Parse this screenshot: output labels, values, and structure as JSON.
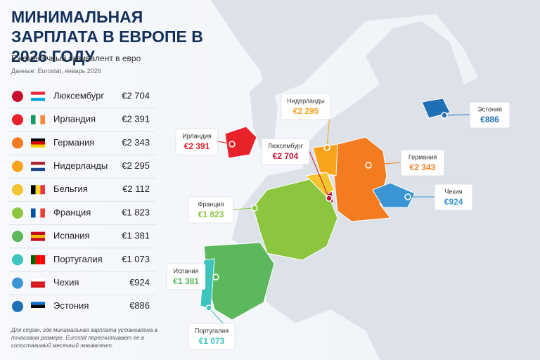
{
  "header": {
    "title": "МИНИМАЛЬНАЯ ЗАРПЛАТА В ЕВРОПЕ В 2026 ГОДУ",
    "subtitle": "Ежемесячный эквивалент в евро",
    "source": "Данные: Eurostat, январь 2026"
  },
  "countries": [
    {
      "name": "Люксембург",
      "value": "€2 704",
      "color": "#c8102e",
      "flag": [
        "#ed2939",
        "#ffffff",
        "#00a1de"
      ]
    },
    {
      "name": "Ирландия",
      "value": "€2 391",
      "color": "#e8222a",
      "flag": [
        "#169b62",
        "#ffffff",
        "#ff883e"
      ],
      "vertical": true
    },
    {
      "name": "Германия",
      "value": "€2 343",
      "color": "#f47c20",
      "flag": [
        "#000000",
        "#dd0000",
        "#ffce00"
      ]
    },
    {
      "name": "Нидерланды",
      "value": "€2 295",
      "color": "#f9a21b",
      "flag": [
        "#ae1c28",
        "#ffffff",
        "#21468b"
      ]
    },
    {
      "name": "Бельгия",
      "value": "€2 112",
      "color": "#f4c430",
      "flag": [
        "#000000",
        "#fdda24",
        "#ef3340"
      ],
      "vertical": true
    },
    {
      "name": "Франция",
      "value": "€1 823",
      "color": "#8cc63f",
      "flag": [
        "#0055a4",
        "#ffffff",
        "#ef4135"
      ],
      "vertical": true
    },
    {
      "name": "Испания",
      "value": "€1 381",
      "color": "#5cb85c",
      "flag": [
        "#c60b1e",
        "#ffc400",
        "#c60b1e"
      ]
    },
    {
      "name": "Португалия",
      "value": "€1 073",
      "color": "#3cc4bd",
      "flag": [
        "#006600",
        "#ff0000",
        "#ff0000"
      ],
      "vertical": true
    },
    {
      "name": "Чехия",
      "value": "€924",
      "color": "#3b95d4",
      "flag": [
        "#ffffff",
        "#d7141a",
        "#d7141a"
      ]
    },
    {
      "name": "Эстония",
      "value": "€886",
      "color": "#1f6fb5",
      "flag": [
        "#0072ce",
        "#000000",
        "#ffffff"
      ]
    }
  ],
  "footnote": "Для стран, где минимальная зарплата установлена в почасовом размере, Eurostat пересчитывает ее в сопоставимый месячный эквивалент."
}
